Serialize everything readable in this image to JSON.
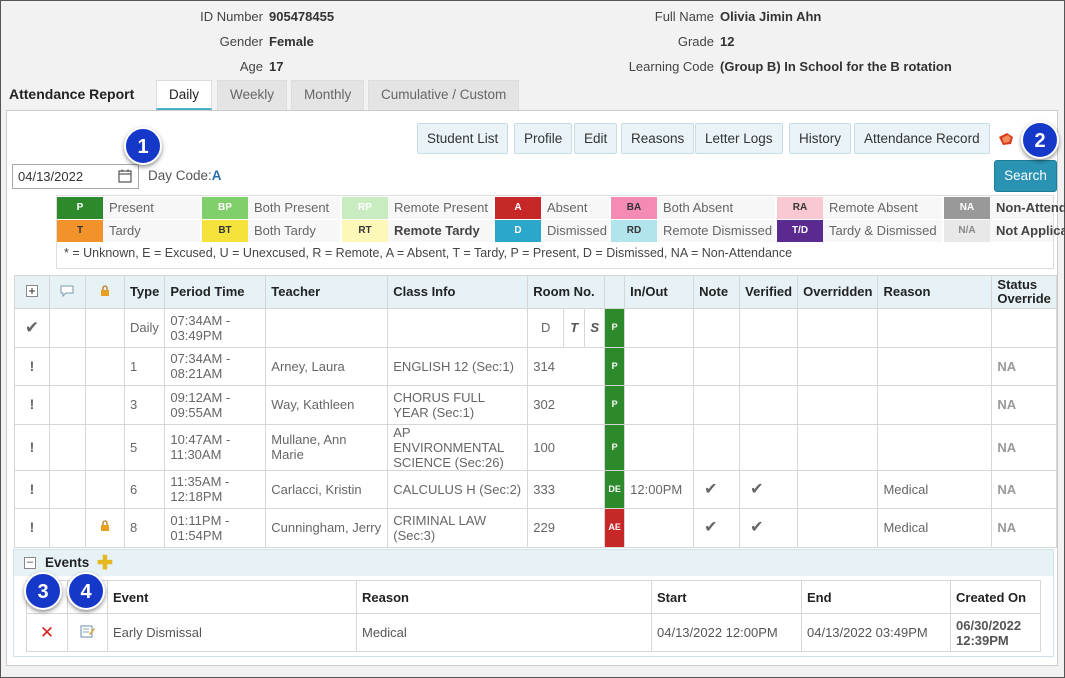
{
  "student": {
    "id_label": "ID Number",
    "id_value": "905478455",
    "gender_label": "Gender",
    "gender_value": "Female",
    "age_label": "Age",
    "age_value": "17",
    "name_label": "Full Name",
    "name_value": "Olivia Jimin Ahn",
    "grade_label": "Grade",
    "grade_value": "12",
    "lc_label": "Learning Code",
    "lc_value": "(Group B) In School for the B rotation"
  },
  "report_title": "Attendance Report",
  "tabs": [
    "Daily",
    "Weekly",
    "Monthly",
    "Cumulative / Custom"
  ],
  "toolbar": [
    "Student List",
    "Profile",
    "Edit",
    "Reasons",
    "Letter Logs",
    "History",
    "Attendance Record"
  ],
  "date_value": "04/13/2022",
  "day_code_label": "Day Code:",
  "day_code_value": "A",
  "search_label": "Search",
  "legend": {
    "row1": [
      {
        "code": "P",
        "text": "Present",
        "bg": "#2c8a2c",
        "fg": "#ffffff"
      },
      {
        "code": "BP",
        "text": "Both Present",
        "bg": "#7fcf6a",
        "fg": "#ffffff"
      },
      {
        "code": "RP",
        "text": "Remote Present",
        "bg": "#c8ecc0",
        "fg": "#ffffff"
      },
      {
        "code": "A",
        "text": "Absent",
        "bg": "#c62828",
        "fg": "#ffffff"
      },
      {
        "code": "BA",
        "text": "Both Absent",
        "bg": "#f38bb5",
        "fg": "#333333"
      },
      {
        "code": "RA",
        "text": "Remote Absent",
        "bg": "#f9c8d2",
        "fg": "#333333"
      },
      {
        "code": "NA",
        "text": "Non-Attendance",
        "bg": "#999999",
        "fg": "#ffffff"
      }
    ],
    "row2": [
      {
        "code": "T",
        "text": "Tardy",
        "bg": "#f2922a",
        "fg": "#333333"
      },
      {
        "code": "BT",
        "text": "Both Tardy",
        "bg": "#f5e23a",
        "fg": "#333333"
      },
      {
        "code": "RT",
        "text": "Remote Tardy",
        "bg": "#fdf7b8",
        "fg": "#333333"
      },
      {
        "code": "D",
        "text": "Dismissed",
        "bg": "#2aa7c9",
        "fg": "#ffffff"
      },
      {
        "code": "RD",
        "text": "Remote Dismissed",
        "bg": "#b2e4ee",
        "fg": "#333333"
      },
      {
        "code": "T/D",
        "text": "Tardy & Dismissed",
        "bg": "#5a2a8e",
        "fg": "#ffffff"
      },
      {
        "code": "N/A",
        "text": "Not Applicable",
        "bg": "#e8e8e8",
        "fg": "#888888"
      }
    ],
    "note": "* = Unknown, E = Excused, U = Unexcused, R = Remote, A = Absent, T = Tardy, P = Present, D = Dismissed, NA = Non-Attendance"
  },
  "table": {
    "headers": [
      "Type",
      "Period Time",
      "Teacher",
      "Class Info",
      "Room No.",
      "In/Out",
      "Note",
      "Verified",
      "Overridden",
      "Reason",
      "Status Override"
    ],
    "daily_flags": [
      "D",
      "T",
      "S"
    ],
    "rows": [
      {
        "type": "Daily",
        "time": "07:34AM - 03:49PM",
        "teacher": "",
        "class": "",
        "room": "",
        "status": "P",
        "inout": "",
        "reason": "",
        "override": ""
      },
      {
        "type": "1",
        "time": "07:34AM - 08:21AM",
        "teacher": "Arney, Laura",
        "class": "ENGLISH 12 (Sec:1)",
        "room": "314",
        "status": "P",
        "inout": "",
        "reason": "",
        "override": "NA"
      },
      {
        "type": "3",
        "time": "09:12AM - 09:55AM",
        "teacher": "Way, Kathleen",
        "class": "CHORUS FULL YEAR (Sec:1)",
        "room": "302",
        "status": "P",
        "inout": "",
        "reason": "",
        "override": "NA"
      },
      {
        "type": "5",
        "time": "10:47AM - 11:30AM",
        "teacher": "Mullane, Ann Marie",
        "class": "AP ENVIRONMENTAL SCIENCE (Sec:26)",
        "room": "100",
        "status": "P",
        "inout": "",
        "reason": "",
        "override": "NA"
      },
      {
        "type": "6",
        "time": "11:35AM - 12:18PM",
        "teacher": "Carlacci, Kristin",
        "class": "CALCULUS H (Sec:2)",
        "room": "333",
        "status": "DE",
        "inout": "12:00PM",
        "reason": "Medical",
        "override": "NA"
      },
      {
        "type": "8",
        "time": "01:11PM - 01:54PM",
        "teacher": "Cunningham, Jerry",
        "class": "CRIMINAL LAW (Sec:3)",
        "room": "229",
        "status": "AE",
        "inout": "",
        "reason": "Medical",
        "override": "NA"
      }
    ]
  },
  "events": {
    "title": "Events",
    "headers": [
      "Event",
      "Reason",
      "Start",
      "End",
      "Created On"
    ],
    "row": {
      "event": "Early Dismissal",
      "reason": "Medical",
      "start": "04/13/2022 12:00PM",
      "end": "04/13/2022 03:49PM",
      "created": "06/30/2022 12:39PM"
    }
  },
  "callouts": [
    "1",
    "2",
    "3",
    "4"
  ]
}
